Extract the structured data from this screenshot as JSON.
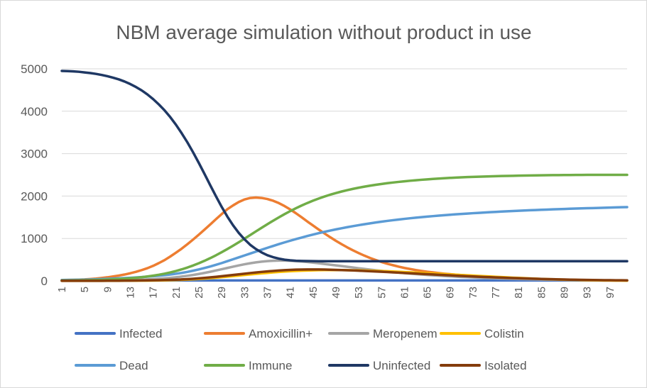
{
  "chart_data": {
    "type": "line",
    "title": "NBM average simulation without product in use",
    "xlabel": "",
    "ylabel": "",
    "ylim": [
      0,
      5000
    ],
    "yticks": [
      0,
      1000,
      2000,
      3000,
      4000,
      5000
    ],
    "x": [
      1,
      2,
      3,
      4,
      5,
      6,
      7,
      8,
      9,
      10,
      11,
      12,
      13,
      14,
      15,
      16,
      17,
      18,
      19,
      20,
      21,
      22,
      23,
      24,
      25,
      26,
      27,
      28,
      29,
      30,
      31,
      32,
      33,
      34,
      35,
      36,
      37,
      38,
      39,
      40,
      41,
      42,
      43,
      44,
      45,
      46,
      47,
      48,
      49,
      50,
      51,
      52,
      53,
      54,
      55,
      56,
      57,
      58,
      59,
      60,
      61,
      62,
      63,
      64,
      65,
      66,
      67,
      68,
      69,
      70,
      71,
      72,
      73,
      74,
      75,
      76,
      77,
      78,
      79,
      80,
      81,
      82,
      83,
      84,
      85,
      86,
      87,
      88,
      89,
      90,
      91,
      92,
      93,
      94,
      95,
      96,
      97,
      98,
      99,
      100
    ],
    "xtick_labels": [
      "1",
      "5",
      "9",
      "13",
      "17",
      "21",
      "25",
      "29",
      "33",
      "37",
      "41",
      "45",
      "49",
      "53",
      "57",
      "61",
      "65",
      "69",
      "73",
      "77",
      "81",
      "85",
      "89",
      "93",
      "97"
    ],
    "grid": true,
    "legend_position": "bottom",
    "series": [
      {
        "name": "Infected",
        "color": "#4472c4",
        "values": [
          10,
          10,
          10,
          10,
          10,
          10,
          10,
          10,
          10,
          10,
          10,
          10,
          10,
          10,
          10,
          10,
          10,
          10,
          10,
          10,
          10,
          10,
          10,
          10,
          10,
          10,
          10,
          10,
          10,
          10,
          10,
          10,
          10,
          10,
          10,
          10,
          10,
          10,
          10,
          10,
          10,
          10,
          10,
          10,
          10,
          10,
          10,
          10,
          10,
          10,
          10,
          10,
          10,
          10,
          10,
          10,
          10,
          10,
          10,
          10,
          10,
          10,
          10,
          10,
          10,
          10,
          10,
          10,
          10,
          10,
          10,
          10,
          10,
          10,
          10,
          10,
          10,
          10,
          10,
          10,
          10,
          10,
          10,
          10,
          10,
          10,
          10,
          10,
          10,
          10,
          10,
          10,
          10,
          10,
          10,
          10,
          10,
          10,
          10,
          10
        ]
      },
      {
        "name": "Amoxicillin+",
        "color": "#ed7d31",
        "values": [
          20,
          22,
          25,
          30,
          35,
          45,
          55,
          70,
          85,
          105,
          125,
          150,
          180,
          215,
          255,
          300,
          355,
          420,
          490,
          575,
          665,
          760,
          865,
          975,
          1090,
          1210,
          1330,
          1455,
          1575,
          1690,
          1780,
          1860,
          1920,
          1955,
          1965,
          1955,
          1930,
          1890,
          1835,
          1765,
          1685,
          1595,
          1500,
          1400,
          1305,
          1210,
          1120,
          1030,
          945,
          865,
          790,
          720,
          655,
          595,
          540,
          490,
          445,
          405,
          370,
          335,
          305,
          280,
          255,
          235,
          215,
          200,
          185,
          170,
          158,
          147,
          137,
          128,
          119,
          110,
          102,
          95,
          88,
          81,
          75,
          69,
          63,
          58,
          53,
          48,
          43,
          39,
          35,
          31,
          28,
          25,
          22,
          19,
          17,
          15,
          13,
          11,
          10,
          9,
          8,
          7
        ]
      },
      {
        "name": "Meropenem",
        "color": "#a5a5a5",
        "values": [
          5,
          5,
          5,
          6,
          6,
          7,
          8,
          9,
          10,
          12,
          14,
          17,
          20,
          24,
          29,
          35,
          42,
          50,
          60,
          72,
          86,
          102,
          120,
          140,
          163,
          188,
          215,
          245,
          275,
          305,
          335,
          365,
          392,
          416,
          437,
          454,
          466,
          474,
          478,
          478,
          474,
          467,
          457,
          445,
          431,
          416,
          400,
          383,
          366,
          349,
          332,
          315,
          298,
          282,
          266,
          251,
          236,
          222,
          209,
          196,
          184,
          172,
          161,
          151,
          141,
          132,
          123,
          115,
          107,
          100,
          93,
          87,
          81,
          75,
          70,
          65,
          60,
          56,
          52,
          48,
          44,
          41,
          38,
          35,
          32,
          30,
          28,
          26,
          24,
          22,
          20,
          19,
          18,
          17,
          16,
          15,
          14,
          13,
          12,
          12
        ]
      },
      {
        "name": "Colistin",
        "color": "#ffc000",
        "values": [
          2,
          2,
          2,
          2,
          2,
          2,
          2,
          2,
          3,
          3,
          3,
          4,
          4,
          5,
          6,
          7,
          9,
          11,
          13,
          16,
          20,
          25,
          31,
          38,
          46,
          55,
          65,
          76,
          88,
          100,
          113,
          126,
          139,
          152,
          165,
          177,
          189,
          200,
          210,
          219,
          227,
          234,
          240,
          245,
          249,
          252,
          254,
          255,
          255,
          254,
          253,
          251,
          248,
          245,
          241,
          237,
          232,
          227,
          221,
          215,
          209,
          202,
          195,
          188,
          181,
          174,
          167,
          160,
          153,
          146,
          139,
          132,
          125,
          118,
          111,
          104,
          97,
          90,
          83,
          76,
          70,
          64,
          58,
          52,
          47,
          42,
          37,
          33,
          29,
          25,
          22,
          19,
          17,
          15,
          13,
          11,
          10,
          9,
          8,
          7
        ]
      },
      {
        "name": "Dead",
        "color": "#5b9bd5",
        "values": [
          20,
          22,
          24,
          27,
          30,
          34,
          38,
          43,
          48,
          54,
          60,
          67,
          74,
          82,
          90,
          100,
          110,
          122,
          135,
          150,
          168,
          188,
          212,
          240,
          270,
          305,
          340,
          380,
          420,
          465,
          510,
          555,
          600,
          645,
          690,
          735,
          780,
          823,
          866,
          907,
          947,
          985,
          1022,
          1058,
          1092,
          1125,
          1156,
          1186,
          1214,
          1241,
          1267,
          1291,
          1314,
          1336,
          1357,
          1377,
          1396,
          1414,
          1431,
          1447,
          1462,
          1477,
          1490,
          1503,
          1515,
          1527,
          1538,
          1549,
          1559,
          1569,
          1578,
          1587,
          1596,
          1604,
          1612,
          1620,
          1627,
          1634,
          1641,
          1647,
          1653,
          1659,
          1665,
          1671,
          1676,
          1681,
          1686,
          1691,
          1696,
          1701,
          1705,
          1709,
          1713,
          1717,
          1721,
          1725,
          1729,
          1733,
          1737,
          1740
        ]
      },
      {
        "name": "Immune",
        "color": "#70ad47",
        "values": [
          10,
          11,
          12,
          14,
          16,
          19,
          22,
          26,
          31,
          37,
          44,
          52,
          62,
          74,
          88,
          104,
          123,
          145,
          170,
          200,
          234,
          272,
          315,
          363,
          416,
          474,
          537,
          604,
          676,
          751,
          830,
          912,
          996,
          1081,
          1167,
          1252,
          1336,
          1418,
          1497,
          1573,
          1645,
          1713,
          1777,
          1836,
          1891,
          1942,
          1989,
          2032,
          2071,
          2107,
          2140,
          2170,
          2197,
          2222,
          2245,
          2266,
          2285,
          2303,
          2319,
          2334,
          2348,
          2361,
          2373,
          2384,
          2394,
          2404,
          2413,
          2421,
          2428,
          2435,
          2441,
          2447,
          2452,
          2457,
          2461,
          2465,
          2469,
          2472,
          2475,
          2478,
          2481,
          2483,
          2485,
          2487,
          2489,
          2491,
          2493,
          2494,
          2495,
          2496,
          2497,
          2498,
          2499,
          2500,
          2500,
          2500,
          2500,
          2500,
          2500,
          2500
        ]
      },
      {
        "name": "Uninfected",
        "color": "#1f3864",
        "values": [
          4950,
          4945,
          4940,
          4930,
          4915,
          4900,
          4880,
          4855,
          4825,
          4790,
          4750,
          4700,
          4640,
          4570,
          4490,
          4395,
          4285,
          4160,
          4020,
          3860,
          3680,
          3480,
          3265,
          3030,
          2780,
          2520,
          2255,
          1995,
          1745,
          1515,
          1310,
          1130,
          980,
          850,
          750,
          670,
          605,
          560,
          525,
          500,
          485,
          475,
          470,
          468,
          466,
          465,
          465,
          465,
          465,
          465,
          465,
          465,
          465,
          465,
          465,
          465,
          465,
          465,
          465,
          465,
          465,
          465,
          465,
          465,
          465,
          465,
          465,
          465,
          465,
          465,
          465,
          465,
          465,
          465,
          465,
          465,
          465,
          465,
          465,
          465,
          465,
          465,
          465,
          465,
          465,
          465,
          465,
          465,
          465,
          465,
          465,
          465,
          465,
          465,
          465,
          465,
          465,
          465,
          465,
          465
        ]
      },
      {
        "name": "Isolated",
        "color": "#843c0c",
        "values": [
          2,
          2,
          2,
          2,
          2,
          3,
          3,
          3,
          4,
          4,
          5,
          6,
          7,
          8,
          10,
          12,
          14,
          17,
          20,
          24,
          29,
          35,
          42,
          50,
          60,
          71,
          83,
          96,
          110,
          125,
          140,
          155,
          170,
          185,
          199,
          212,
          224,
          235,
          245,
          253,
          260,
          265,
          268,
          270,
          270,
          269,
          267,
          264,
          260,
          256,
          251,
          246,
          240,
          234,
          228,
          222,
          215,
          208,
          201,
          194,
          187,
          180,
          173,
          166,
          159,
          152,
          145,
          138,
          131,
          124,
          117,
          111,
          105,
          99,
          93,
          87,
          82,
          77,
          72,
          67,
          62,
          58,
          54,
          50,
          46,
          42,
          39,
          36,
          33,
          30,
          27,
          25,
          23,
          21,
          19,
          17,
          16,
          15,
          14,
          13
        ]
      }
    ]
  }
}
